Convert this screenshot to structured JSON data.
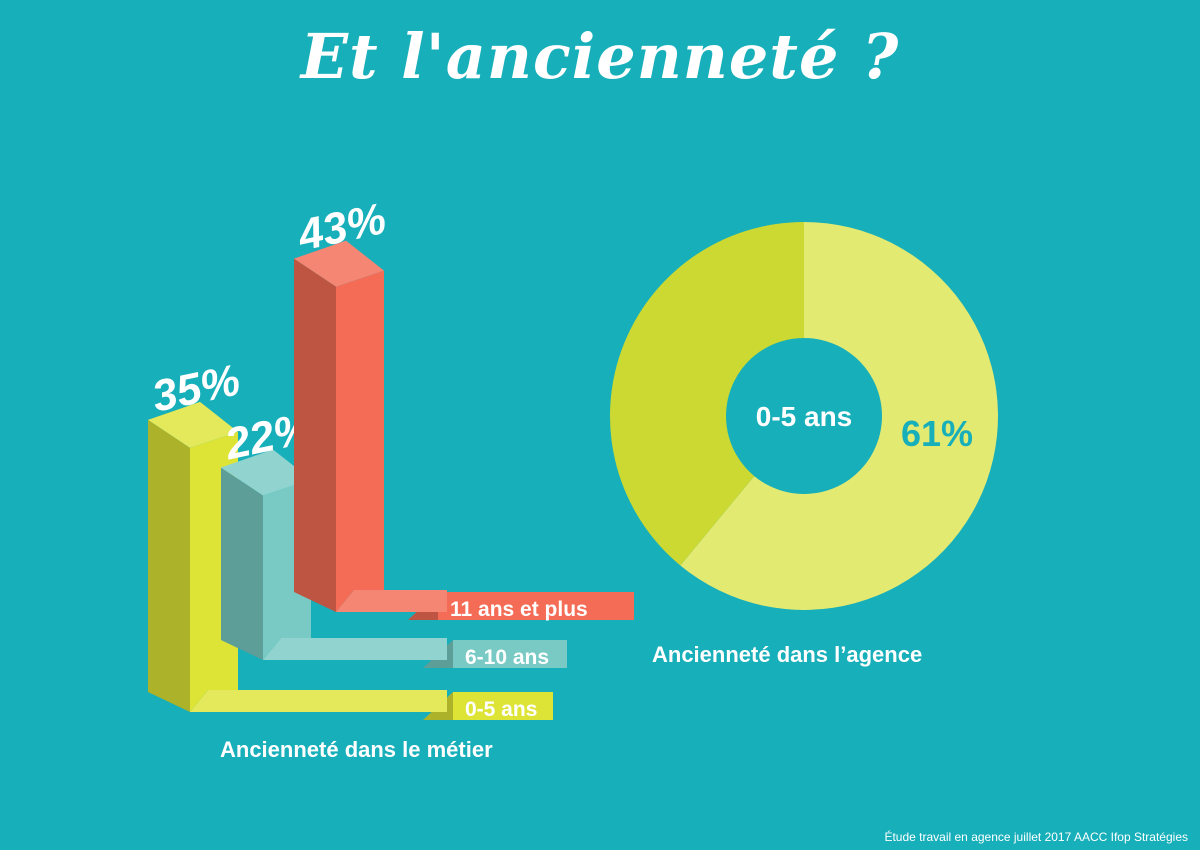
{
  "title": "Et l'ancienneté ?",
  "source": "Étude travail en agence juillet 2017 AACC Ifop Stratégies",
  "chart_data": [
    {
      "type": "bar",
      "caption": "Ancienneté dans le métier",
      "categories": [
        "0-5 ans",
        "6-10 ans",
        "11 ans et plus"
      ],
      "values": [
        35,
        22,
        43
      ],
      "value_labels": [
        "35%",
        "22%",
        "43%"
      ],
      "colors": {
        "0-5 ans": "#dde436",
        "6-10 ans": "#79cac4",
        "11 ans et plus": "#f46c55"
      }
    },
    {
      "type": "pie",
      "caption": "Ancienneté dans l’agence",
      "center_label": "0-5 ans",
      "slices": [
        {
          "label": "0-5 ans",
          "value": 61,
          "display": "61%",
          "color": "#e3ea72"
        },
        {
          "value": 39,
          "color": "#cbd932"
        }
      ]
    }
  ]
}
